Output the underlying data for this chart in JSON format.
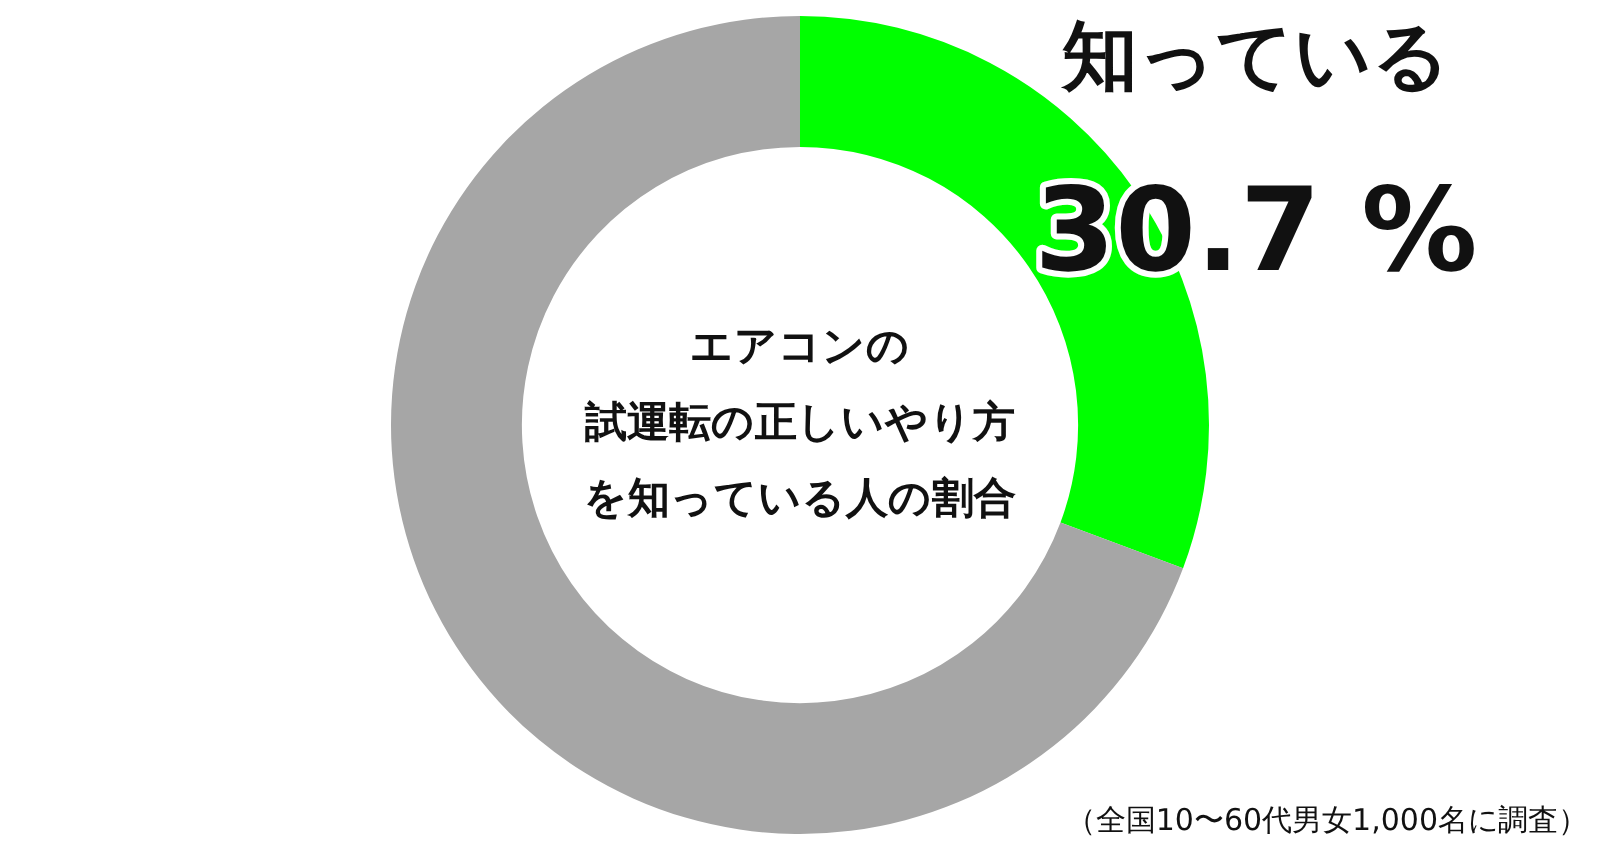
{
  "chart_data": {
    "type": "donut",
    "title": "エアコンの試運転の正しいやり方を知っている人の割合",
    "categories": [
      "知っている",
      null
    ],
    "values": [
      30.7,
      69.3
    ],
    "colors": [
      "#00ff00",
      "#a6a6a6"
    ],
    "value_labels": [
      "30.7 %",
      null
    ],
    "annotations": [
      "（全国10〜60代男女1,000名に調査）"
    ]
  }
}
